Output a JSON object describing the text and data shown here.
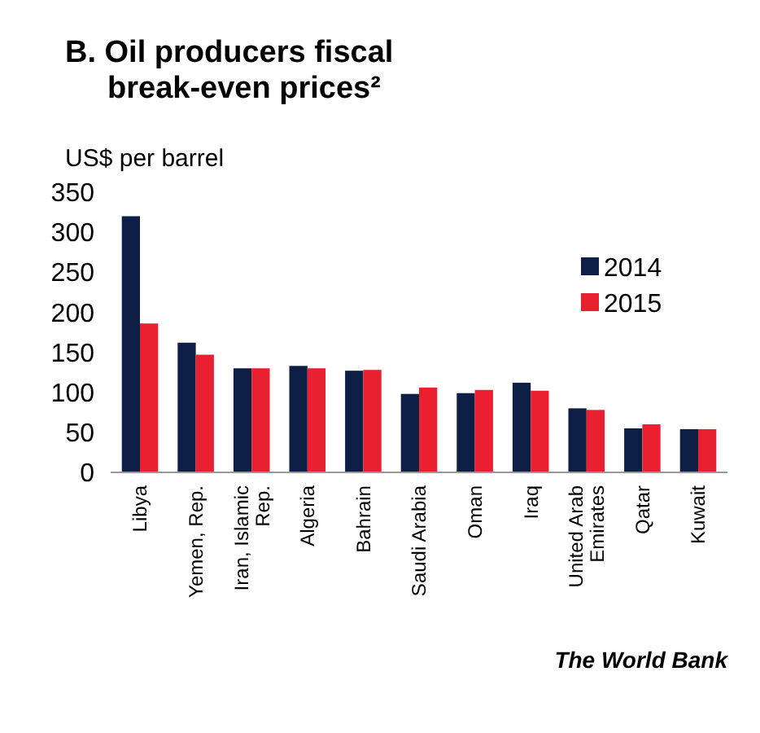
{
  "chart_data": {
    "type": "bar",
    "title": "B. Oil producers fiscal break-even prices²",
    "ylabel": "US$ per barrel",
    "categories": [
      "Libya",
      "Yemen, Rep.",
      "Iran, Islamic Rep.",
      "Algeria",
      "Bahrain",
      "Saudi Arabia",
      "Oman",
      "Iraq",
      "United Arab Emirates",
      "Qatar",
      "Kuwait"
    ],
    "series": [
      {
        "name": "2014",
        "color": "#0d1f45",
        "values": [
          320,
          162,
          130,
          133,
          127,
          98,
          99,
          112,
          80,
          55,
          54
        ]
      },
      {
        "name": "2015",
        "color": "#e8202f",
        "values": [
          186,
          147,
          130,
          130,
          128,
          106,
          103,
          102,
          78,
          60,
          54
        ]
      }
    ],
    "ylim": [
      0,
      350
    ],
    "yticks": [
      0,
      50,
      100,
      150,
      200,
      250,
      300,
      350
    ],
    "grid": false,
    "legend": "top right",
    "annotations": [
      "The World Bank"
    ]
  }
}
